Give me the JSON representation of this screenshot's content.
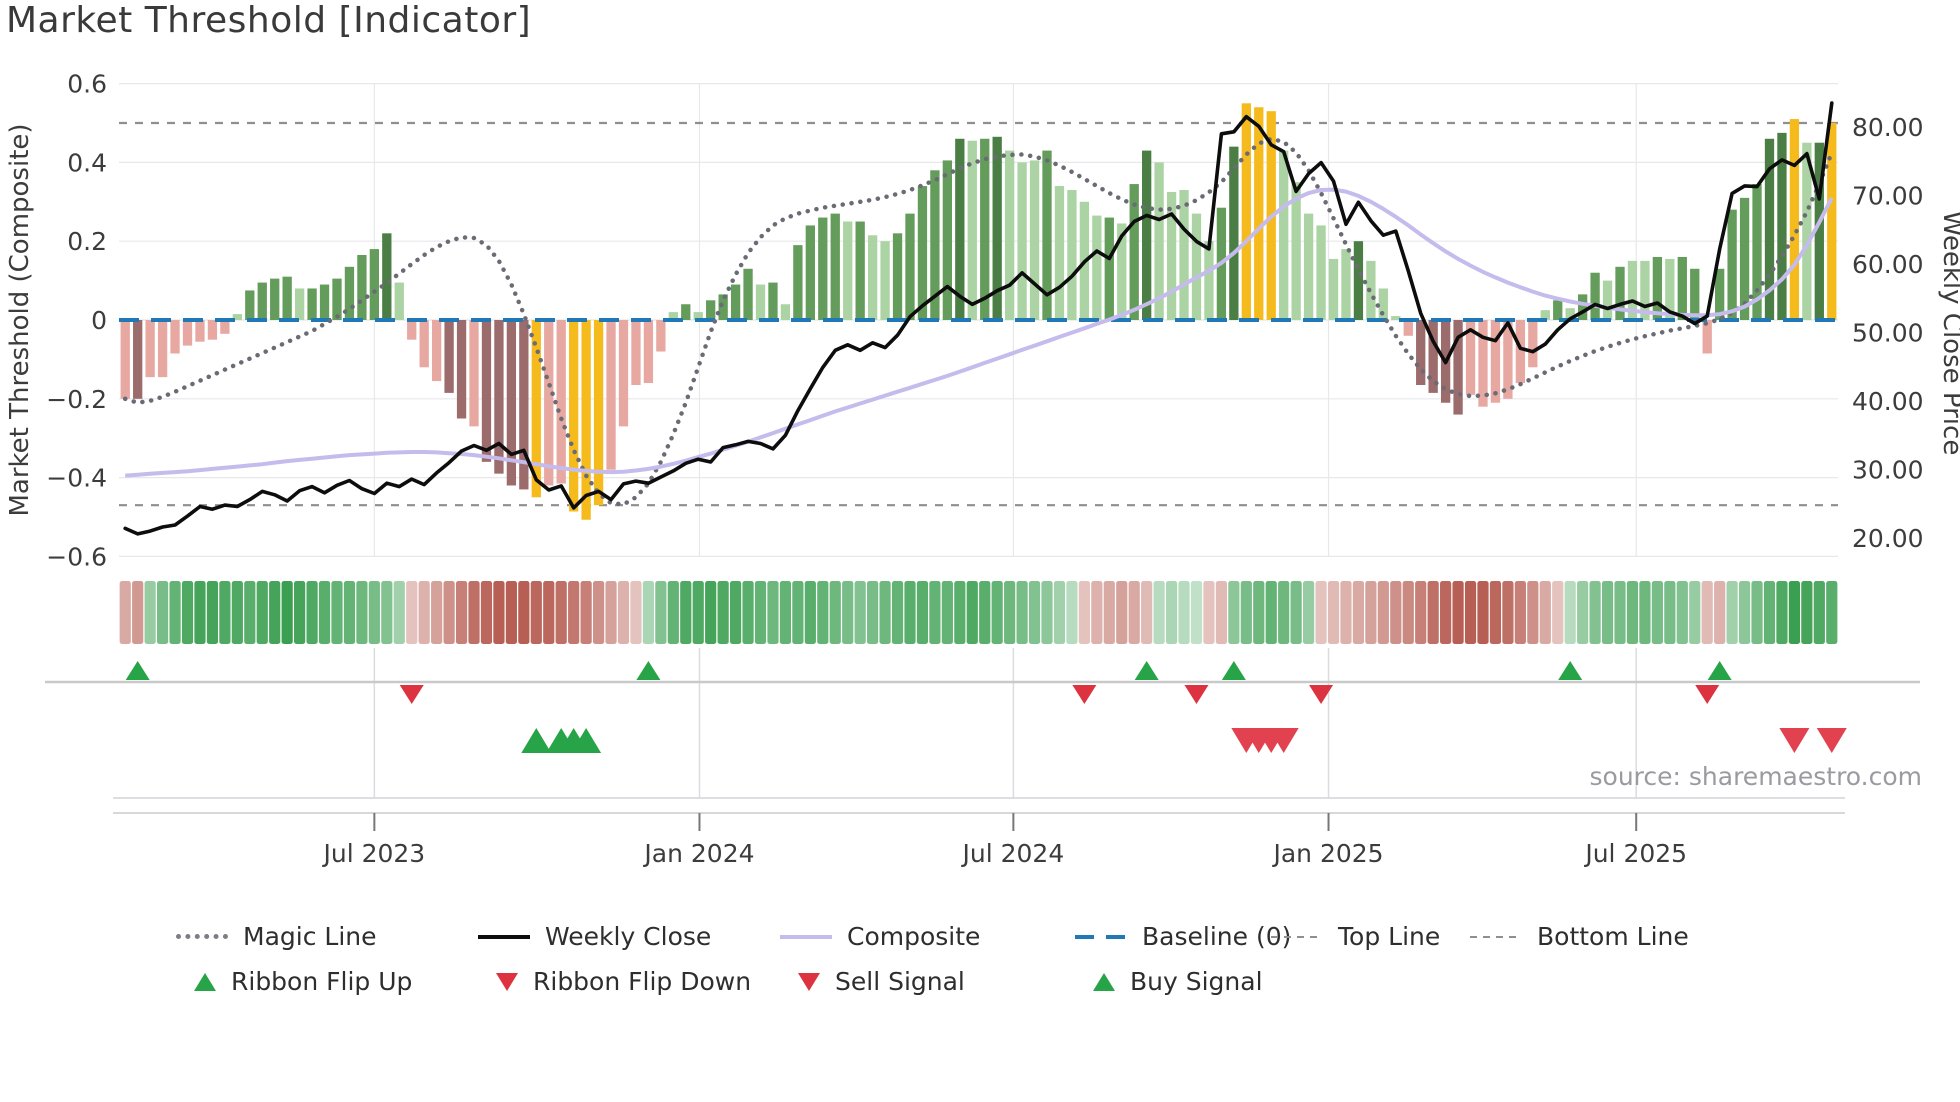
{
  "title": "Market Threshold [Indicator]",
  "source_note": "source: sharemaestro.com",
  "colors": {
    "title_text": "#3a3a3a",
    "axis_text": "#3c3c3c",
    "grid": "#e8e8eb",
    "weekly_close": "#0d0d0d",
    "composite": "#c5bbec",
    "magic_line": "#6b6b75",
    "baseline": "#2079b4",
    "guide_dashed": "#8f8f8f",
    "flip_up": "#27a348",
    "flip_down": "#dd3340",
    "buy": "#27a348",
    "sell": "#e2424f",
    "ribbon_green": "#27963f",
    "ribbon_red": "#b04f43",
    "source_text": "#9a9aa0",
    "palette": {
      "p": "#e7a8a2",
      "m": "#9c6b6b",
      "y": "#f5bb1d",
      "lg": "#abd3a4",
      "g": "#649c5b",
      "dg": "#4a7e45"
    }
  },
  "legend": {
    "rows": [
      [
        {
          "label": "Magic Line",
          "type": "dotted-gray"
        },
        {
          "label": "Weekly Close",
          "type": "solid-black"
        },
        {
          "label": "Composite",
          "type": "solid-purple"
        },
        {
          "label": "Baseline (0)",
          "type": "dashed-blue"
        },
        {
          "label": "Top Line",
          "type": "dashed-gray"
        },
        {
          "label": "Bottom Line",
          "type": "dashed-gray"
        }
      ],
      [
        {
          "label": "Ribbon Flip Up",
          "type": "tri-up"
        },
        {
          "label": "Ribbon Flip Down",
          "type": "tri-down"
        },
        {
          "label": "Sell Signal",
          "type": "tri-down"
        },
        {
          "label": "Buy Signal",
          "type": "tri-up"
        }
      ]
    ]
  },
  "chart_data": {
    "type": "bar",
    "title": "Market Threshold [Indicator]",
    "xlabel": "",
    "ylabel": "Market Threshold (Composite)",
    "y2label": "Weekly Close Price",
    "x_axis": {
      "tick_labels": [
        "Jul 2023",
        "Jan 2024",
        "Jul 2024",
        "Jan 2025",
        "Jul 2025"
      ],
      "tick_weeks": [
        20.0,
        46.1,
        71.3,
        96.6,
        121.3
      ],
      "range_note": "138 weekly bars, ~Feb 2023 to ~Oct 2025"
    },
    "left_axis": {
      "label": "Market Threshold (Composite)",
      "ticks": [
        0.6,
        0.4,
        0.2,
        0,
        -0.2,
        -0.4,
        -0.6
      ],
      "tick_labels": [
        "0.6",
        "0.4",
        "0.2",
        "0",
        "−0.2",
        "−0.4",
        "−0.6"
      ],
      "ylim": [
        -0.65,
        0.66
      ]
    },
    "right_axis": {
      "label": "Weekly Close Price",
      "ticks": [
        80,
        70,
        60,
        50,
        40,
        30,
        20
      ],
      "tick_labels": [
        "80.00",
        "70.00",
        "60.00",
        "50.00",
        "40.00",
        "30.00",
        "20.00"
      ]
    },
    "guides": {
      "top_line": 0.5,
      "bottom_line": -0.47,
      "baseline": 0
    },
    "bars": {
      "values": [
        -0.2,
        -0.2,
        -0.145,
        -0.145,
        -0.085,
        -0.065,
        -0.055,
        -0.05,
        -0.035,
        0.015,
        0.075,
        0.095,
        0.105,
        0.11,
        0.08,
        0.08,
        0.09,
        0.105,
        0.135,
        0.165,
        0.18,
        0.22,
        0.095,
        -0.05,
        -0.12,
        -0.155,
        -0.185,
        -0.25,
        -0.27,
        -0.36,
        -0.39,
        -0.42,
        -0.43,
        -0.45,
        -0.42,
        -0.415,
        -0.486,
        -0.507,
        -0.47,
        -0.38,
        -0.27,
        -0.165,
        -0.16,
        -0.08,
        0.02,
        0.04,
        0.02,
        0.05,
        0.065,
        0.09,
        0.13,
        0.09,
        0.095,
        0.04,
        0.19,
        0.24,
        0.26,
        0.27,
        0.25,
        0.25,
        0.215,
        0.2,
        0.22,
        0.27,
        0.34,
        0.38,
        0.405,
        0.46,
        0.455,
        0.46,
        0.465,
        0.43,
        0.4,
        0.405,
        0.43,
        0.34,
        0.33,
        0.3,
        0.265,
        0.26,
        0.245,
        0.345,
        0.43,
        0.4,
        0.325,
        0.33,
        0.27,
        0.2,
        0.285,
        0.44,
        0.55,
        0.54,
        0.53,
        0.43,
        0.35,
        0.27,
        0.24,
        0.155,
        0.18,
        0.2,
        0.15,
        0.08,
        0.01,
        -0.04,
        -0.165,
        -0.185,
        -0.21,
        -0.24,
        -0.19,
        -0.22,
        -0.21,
        -0.2,
        -0.16,
        -0.12,
        0.025,
        0.05,
        0.03,
        0.065,
        0.12,
        0.1,
        0.135,
        0.15,
        0.15,
        0.16,
        0.155,
        0.16,
        0.13,
        -0.085,
        0.13,
        0.28,
        0.31,
        0.345,
        0.46,
        0.475,
        0.51,
        0.45,
        0.45,
        0.5
      ],
      "colors": [
        "p",
        "m",
        "p",
        "p",
        "p",
        "p",
        "p",
        "p",
        "p",
        "lg",
        "g",
        "g",
        "g",
        "g",
        "lg",
        "g",
        "g",
        "g",
        "g",
        "g",
        "g",
        "dg",
        "lg",
        "p",
        "p",
        "p",
        "m",
        "m",
        "p",
        "m",
        "m",
        "m",
        "m",
        "y",
        "p",
        "p",
        "y",
        "y",
        "y",
        "p",
        "p",
        "p",
        "p",
        "p",
        "lg",
        "g",
        "lg",
        "g",
        "g",
        "g",
        "g",
        "lg",
        "g",
        "lg",
        "g",
        "g",
        "g",
        "g",
        "lg",
        "g",
        "lg",
        "lg",
        "g",
        "g",
        "g",
        "g",
        "g",
        "dg",
        "lg",
        "g",
        "dg",
        "lg",
        "lg",
        "lg",
        "g",
        "lg",
        "lg",
        "lg",
        "lg",
        "g",
        "lg",
        "g",
        "dg",
        "lg",
        "lg",
        "lg",
        "lg",
        "lg",
        "g",
        "dg",
        "y",
        "y",
        "y",
        "lg",
        "lg",
        "lg",
        "lg",
        "lg",
        "lg",
        "dg",
        "lg",
        "lg",
        "lg",
        "p",
        "m",
        "m",
        "m",
        "m",
        "p",
        "p",
        "p",
        "p",
        "p",
        "p",
        "lg",
        "g",
        "lg",
        "g",
        "g",
        "lg",
        "g",
        "lg",
        "lg",
        "g",
        "lg",
        "g",
        "g",
        "p",
        "g",
        "g",
        "g",
        "g",
        "dg",
        "dg",
        "y",
        "lg",
        "dg",
        "y"
      ]
    },
    "series": [
      {
        "name": "Weekly Close",
        "axis": "right",
        "values": [
          21.4,
          20.6,
          21.0,
          21.6,
          21.9,
          23.2,
          24.6,
          24.2,
          24.8,
          24.6,
          25.6,
          26.8,
          26.3,
          25.4,
          26.9,
          27.5,
          26.6,
          27.7,
          28.4,
          27.2,
          26.5,
          28.0,
          27.5,
          28.6,
          27.8,
          29.5,
          31.0,
          32.7,
          33.5,
          32.8,
          33.8,
          32.2,
          32.8,
          28.5,
          27.0,
          27.6,
          24.4,
          26.2,
          26.8,
          25.6,
          27.9,
          28.3,
          28.0,
          28.9,
          29.8,
          30.9,
          31.5,
          31.1,
          33.2,
          33.6,
          34.1,
          33.8,
          33.0,
          35.0,
          38.6,
          41.8,
          44.9,
          47.4,
          48.2,
          47.4,
          48.5,
          47.8,
          49.6,
          52.3,
          53.9,
          55.3,
          56.7,
          55.3,
          54.1,
          55.0,
          56.1,
          56.9,
          58.7,
          57.1,
          55.5,
          56.6,
          58.2,
          60.3,
          61.9,
          60.8,
          64.1,
          66.2,
          67.1,
          66.5,
          67.3,
          65.1,
          63.3,
          62.2,
          79.0,
          79.3,
          81.5,
          80.1,
          77.4,
          76.4,
          70.6,
          73.2,
          74.8,
          72.1,
          65.8,
          69.0,
          66.3,
          64.2,
          64.8,
          59.0,
          52.8,
          48.7,
          45.6,
          49.3,
          50.4,
          49.3,
          48.8,
          51.4,
          47.7,
          47.2,
          48.3,
          50.4,
          52.0,
          53.0,
          54.1,
          53.5,
          54.1,
          54.6,
          53.8,
          54.3,
          53.0,
          52.4,
          51.3,
          52.4,
          62.2,
          70.3,
          71.4,
          71.3,
          73.9,
          75.2,
          74.4,
          76.1,
          69.5,
          83.5
        ]
      },
      {
        "name": "Composite",
        "axis": "left",
        "values": [
          -0.395,
          -0.393,
          -0.39,
          -0.388,
          -0.386,
          -0.384,
          -0.381,
          -0.378,
          -0.375,
          -0.372,
          -0.369,
          -0.366,
          -0.362,
          -0.358,
          -0.355,
          -0.352,
          -0.349,
          -0.346,
          -0.343,
          -0.341,
          -0.339,
          -0.337,
          -0.336,
          -0.335,
          -0.335,
          -0.336,
          -0.338,
          -0.34,
          -0.343,
          -0.347,
          -0.351,
          -0.356,
          -0.361,
          -0.366,
          -0.371,
          -0.376,
          -0.38,
          -0.383,
          -0.385,
          -0.386,
          -0.385,
          -0.382,
          -0.378,
          -0.372,
          -0.365,
          -0.357,
          -0.348,
          -0.339,
          -0.329,
          -0.319,
          -0.309,
          -0.298,
          -0.287,
          -0.276,
          -0.265,
          -0.254,
          -0.243,
          -0.232,
          -0.222,
          -0.212,
          -0.202,
          -0.192,
          -0.182,
          -0.172,
          -0.162,
          -0.152,
          -0.142,
          -0.131,
          -0.12,
          -0.109,
          -0.098,
          -0.087,
          -0.076,
          -0.065,
          -0.054,
          -0.043,
          -0.032,
          -0.021,
          -0.01,
          0.001,
          0.013,
          0.026,
          0.04,
          0.055,
          0.072,
          0.09,
          0.108,
          0.125,
          0.145,
          0.17,
          0.2,
          0.232,
          0.262,
          0.288,
          0.308,
          0.322,
          0.33,
          0.331,
          0.326,
          0.315,
          0.3,
          0.282,
          0.262,
          0.24,
          0.217,
          0.195,
          0.174,
          0.155,
          0.138,
          0.122,
          0.108,
          0.095,
          0.083,
          0.072,
          0.062,
          0.054,
          0.047,
          0.041,
          0.036,
          0.031,
          0.027,
          0.023,
          0.02,
          0.017,
          0.015,
          0.013,
          0.012,
          0.012,
          0.015,
          0.022,
          0.034,
          0.052,
          0.075,
          0.103,
          0.14,
          0.19,
          0.248,
          0.31
        ]
      },
      {
        "name": "Magic Line",
        "axis": "left",
        "values": [
          -0.2,
          -0.21,
          -0.205,
          -0.195,
          -0.182,
          -0.168,
          -0.154,
          -0.14,
          -0.126,
          -0.112,
          -0.098,
          -0.084,
          -0.07,
          -0.056,
          -0.042,
          -0.028,
          -0.01,
          0.008,
          0.028,
          0.05,
          0.072,
          0.094,
          0.118,
          0.142,
          0.165,
          0.185,
          0.2,
          0.21,
          0.208,
          0.19,
          0.15,
          0.09,
          0.015,
          -0.07,
          -0.16,
          -0.25,
          -0.33,
          -0.395,
          -0.44,
          -0.465,
          -0.468,
          -0.45,
          -0.415,
          -0.36,
          -0.29,
          -0.21,
          -0.12,
          -0.03,
          0.05,
          0.115,
          0.17,
          0.21,
          0.24,
          0.258,
          0.27,
          0.278,
          0.285,
          0.29,
          0.295,
          0.3,
          0.305,
          0.312,
          0.32,
          0.33,
          0.342,
          0.355,
          0.37,
          0.385,
          0.398,
          0.408,
          0.415,
          0.419,
          0.42,
          0.415,
          0.405,
          0.392,
          0.376,
          0.358,
          0.34,
          0.322,
          0.306,
          0.293,
          0.284,
          0.28,
          0.282,
          0.29,
          0.304,
          0.324,
          0.35,
          0.385,
          0.42,
          0.448,
          0.46,
          0.452,
          0.425,
          0.38,
          0.322,
          0.258,
          0.192,
          0.128,
          0.068,
          0.012,
          -0.04,
          -0.086,
          -0.125,
          -0.155,
          -0.176,
          -0.188,
          -0.193,
          -0.192,
          -0.186,
          -0.176,
          -0.163,
          -0.148,
          -0.133,
          -0.118,
          -0.104,
          -0.091,
          -0.079,
          -0.068,
          -0.058,
          -0.049,
          -0.041,
          -0.034,
          -0.027,
          -0.021,
          -0.015,
          -0.008,
          0.002,
          0.018,
          0.042,
          0.075,
          0.115,
          0.162,
          0.215,
          0.275,
          0.345,
          0.425
        ]
      }
    ],
    "ribbon": [
      -0.35,
      -0.45,
      0.35,
      0.5,
      0.6,
      0.7,
      0.75,
      0.75,
      0.7,
      0.7,
      0.65,
      0.7,
      0.75,
      0.8,
      0.75,
      0.7,
      0.65,
      0.6,
      0.6,
      0.55,
      0.5,
      0.45,
      0.3,
      -0.2,
      -0.3,
      -0.4,
      -0.5,
      -0.6,
      -0.7,
      -0.75,
      -0.8,
      -0.8,
      -0.8,
      -0.75,
      -0.75,
      -0.7,
      -0.65,
      -0.6,
      -0.5,
      -0.4,
      -0.3,
      -0.2,
      0.25,
      0.45,
      0.6,
      0.7,
      0.7,
      0.75,
      0.7,
      0.7,
      0.65,
      0.6,
      0.55,
      0.6,
      0.6,
      0.65,
      0.6,
      0.55,
      0.5,
      0.45,
      0.5,
      0.55,
      0.6,
      0.65,
      0.65,
      0.6,
      0.6,
      0.65,
      0.7,
      0.65,
      0.6,
      0.55,
      0.5,
      0.45,
      0.4,
      0.3,
      0.2,
      -0.2,
      -0.3,
      -0.35,
      -0.4,
      -0.35,
      -0.25,
      0.2,
      0.25,
      0.2,
      0.15,
      -0.2,
      -0.25,
      0.4,
      0.5,
      0.55,
      0.6,
      0.55,
      0.5,
      0.35,
      -0.2,
      -0.25,
      -0.3,
      -0.35,
      -0.4,
      -0.45,
      -0.5,
      -0.55,
      -0.6,
      -0.7,
      -0.75,
      -0.8,
      -0.8,
      -0.8,
      -0.75,
      -0.7,
      -0.6,
      -0.5,
      -0.35,
      -0.2,
      0.2,
      0.35,
      0.45,
      0.5,
      0.5,
      0.55,
      0.55,
      0.5,
      0.5,
      0.45,
      0.35,
      -0.25,
      -0.3,
      0.3,
      0.4,
      0.5,
      0.6,
      0.7,
      0.8,
      0.75,
      0.7,
      0.65
    ],
    "signals": {
      "ribbon_flip_up_weeks": [
        1,
        42,
        82,
        89,
        116,
        128
      ],
      "ribbon_flip_down_weeks": [
        23,
        77,
        86,
        96,
        127
      ],
      "buy_signal_weeks": [
        33,
        35,
        36,
        37
      ],
      "sell_signal_weeks": [
        90,
        91,
        92,
        93,
        134,
        137
      ]
    }
  }
}
